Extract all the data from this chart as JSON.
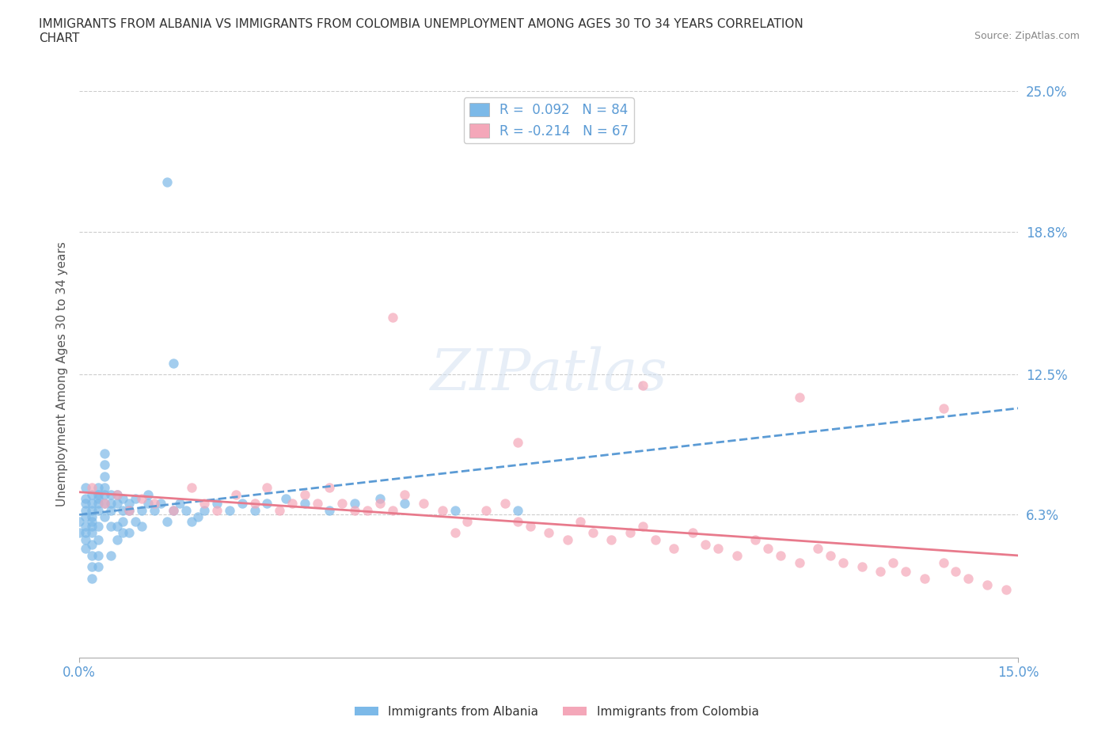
{
  "title": "IMMIGRANTS FROM ALBANIA VS IMMIGRANTS FROM COLOMBIA UNEMPLOYMENT AMONG AGES 30 TO 34 YEARS CORRELATION\nCHART",
  "source": "Source: ZipAtlas.com",
  "ylabel": "Unemployment Among Ages 30 to 34 years",
  "xlim": [
    0.0,
    0.15
  ],
  "ylim": [
    0.0,
    0.25
  ],
  "xticks": [
    0.0,
    0.15
  ],
  "xticklabels": [
    "0.0%",
    "15.0%"
  ],
  "yticks": [
    0.0,
    0.063,
    0.125,
    0.188,
    0.25
  ],
  "yticklabels": [
    "",
    "6.3%",
    "12.5%",
    "18.8%",
    "25.0%"
  ],
  "albania_color": "#7cb9e8",
  "colombia_color": "#f4a7b9",
  "albania_line_color": "#5b9bd5",
  "colombia_line_color": "#e87a8c",
  "albania_R": 0.092,
  "albania_N": 84,
  "colombia_R": -0.214,
  "colombia_N": 67,
  "legend_albania": "Immigrants from Albania",
  "legend_colombia": "Immigrants from Colombia",
  "albania_scatter_x": [
    0.0,
    0.0,
    0.001,
    0.001,
    0.001,
    0.001,
    0.001,
    0.001,
    0.001,
    0.001,
    0.001,
    0.002,
    0.002,
    0.002,
    0.002,
    0.002,
    0.002,
    0.002,
    0.002,
    0.002,
    0.002,
    0.002,
    0.003,
    0.003,
    0.003,
    0.003,
    0.003,
    0.003,
    0.003,
    0.003,
    0.003,
    0.004,
    0.004,
    0.004,
    0.004,
    0.004,
    0.004,
    0.004,
    0.005,
    0.005,
    0.005,
    0.005,
    0.005,
    0.006,
    0.006,
    0.006,
    0.006,
    0.007,
    0.007,
    0.007,
    0.007,
    0.008,
    0.008,
    0.008,
    0.009,
    0.009,
    0.01,
    0.01,
    0.011,
    0.011,
    0.012,
    0.013,
    0.014,
    0.015,
    0.016,
    0.017,
    0.018,
    0.019,
    0.02,
    0.022,
    0.024,
    0.026,
    0.028,
    0.03,
    0.033,
    0.036,
    0.04,
    0.044,
    0.048,
    0.052,
    0.014,
    0.015,
    0.06,
    0.07
  ],
  "albania_scatter_y": [
    0.055,
    0.06,
    0.058,
    0.062,
    0.065,
    0.068,
    0.07,
    0.055,
    0.048,
    0.052,
    0.075,
    0.058,
    0.062,
    0.065,
    0.068,
    0.072,
    0.055,
    0.05,
    0.045,
    0.04,
    0.06,
    0.035,
    0.065,
    0.068,
    0.07,
    0.072,
    0.075,
    0.058,
    0.052,
    0.045,
    0.04,
    0.068,
    0.072,
    0.075,
    0.08,
    0.085,
    0.09,
    0.062,
    0.065,
    0.068,
    0.072,
    0.058,
    0.045,
    0.068,
    0.072,
    0.058,
    0.052,
    0.07,
    0.065,
    0.06,
    0.055,
    0.068,
    0.065,
    0.055,
    0.07,
    0.06,
    0.065,
    0.058,
    0.068,
    0.072,
    0.065,
    0.068,
    0.06,
    0.065,
    0.068,
    0.065,
    0.06,
    0.062,
    0.065,
    0.068,
    0.065,
    0.068,
    0.065,
    0.068,
    0.07,
    0.068,
    0.065,
    0.068,
    0.07,
    0.068,
    0.21,
    0.13,
    0.065,
    0.065
  ],
  "colombia_scatter_x": [
    0.002,
    0.004,
    0.006,
    0.008,
    0.01,
    0.012,
    0.015,
    0.018,
    0.02,
    0.022,
    0.025,
    0.028,
    0.03,
    0.032,
    0.034,
    0.036,
    0.038,
    0.04,
    0.042,
    0.044,
    0.046,
    0.048,
    0.05,
    0.052,
    0.055,
    0.058,
    0.06,
    0.062,
    0.065,
    0.068,
    0.07,
    0.072,
    0.075,
    0.078,
    0.08,
    0.082,
    0.085,
    0.088,
    0.09,
    0.092,
    0.095,
    0.098,
    0.1,
    0.102,
    0.105,
    0.108,
    0.11,
    0.112,
    0.115,
    0.118,
    0.12,
    0.122,
    0.125,
    0.128,
    0.13,
    0.132,
    0.135,
    0.138,
    0.14,
    0.142,
    0.145,
    0.148,
    0.05,
    0.07,
    0.09,
    0.115,
    0.138
  ],
  "colombia_scatter_y": [
    0.075,
    0.068,
    0.072,
    0.065,
    0.07,
    0.068,
    0.065,
    0.075,
    0.068,
    0.065,
    0.072,
    0.068,
    0.075,
    0.065,
    0.068,
    0.072,
    0.068,
    0.075,
    0.068,
    0.065,
    0.065,
    0.068,
    0.065,
    0.072,
    0.068,
    0.065,
    0.055,
    0.06,
    0.065,
    0.068,
    0.06,
    0.058,
    0.055,
    0.052,
    0.06,
    0.055,
    0.052,
    0.055,
    0.058,
    0.052,
    0.048,
    0.055,
    0.05,
    0.048,
    0.045,
    0.052,
    0.048,
    0.045,
    0.042,
    0.048,
    0.045,
    0.042,
    0.04,
    0.038,
    0.042,
    0.038,
    0.035,
    0.042,
    0.038,
    0.035,
    0.032,
    0.03,
    0.15,
    0.095,
    0.12,
    0.115,
    0.11
  ],
  "albania_trend_x": [
    0.0,
    0.15
  ],
  "albania_trend_y": [
    0.063,
    0.11
  ],
  "colombia_trend_x": [
    0.0,
    0.15
  ],
  "colombia_trend_y": [
    0.073,
    0.045
  ]
}
